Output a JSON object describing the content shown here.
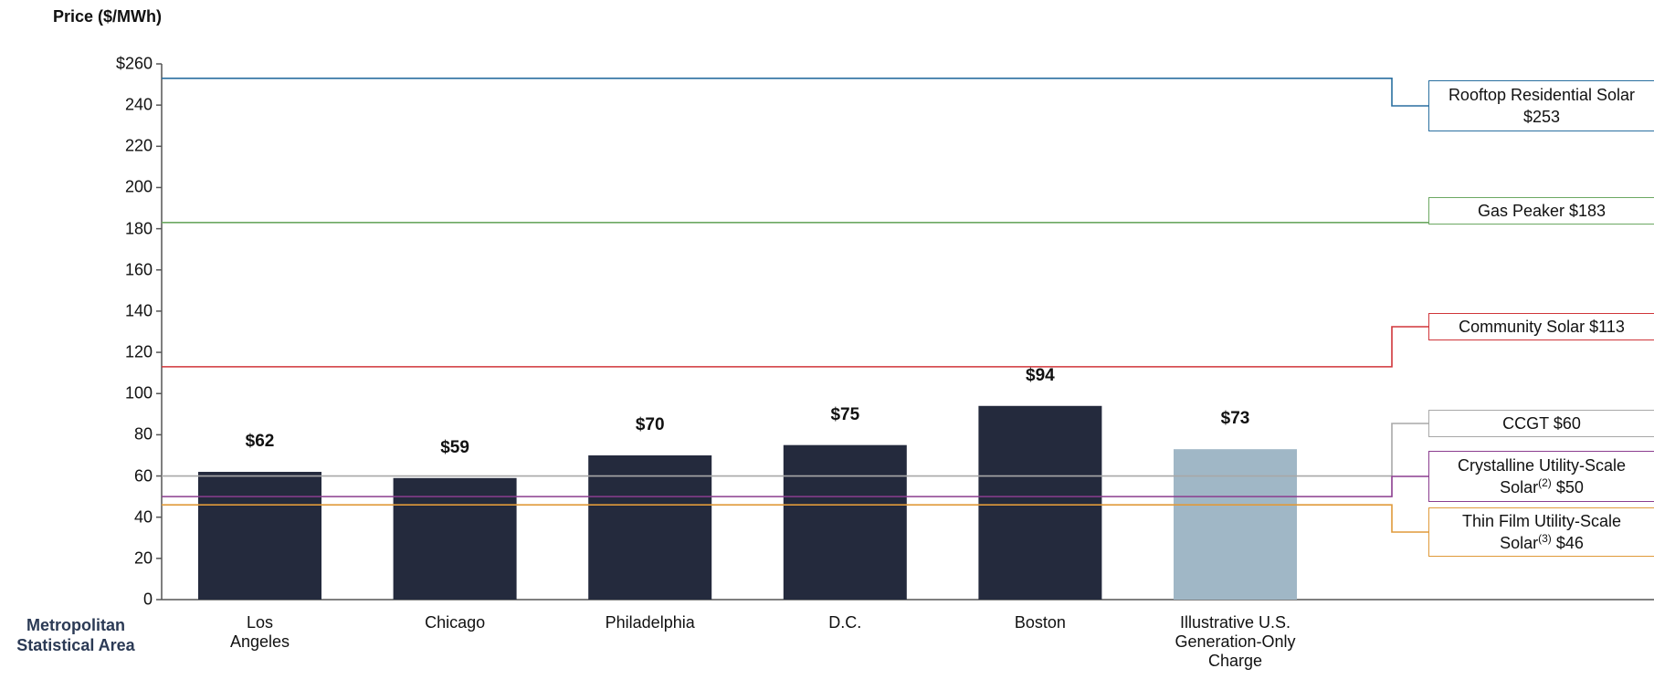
{
  "chart_data": {
    "type": "bar",
    "y_label": "Price ($/MWh)",
    "x_label": "Metropolitan\nStatistical Area",
    "categories": [
      "Los\nAngeles",
      "Chicago",
      "Philadelphia",
      "D.C.",
      "Boston",
      "Illustrative U.S.\nGeneration-Only\nCharge"
    ],
    "values": [
      62,
      59,
      70,
      75,
      94,
      73
    ],
    "value_labels": [
      "$62",
      "$59",
      "$70",
      "$75",
      "$94",
      "$73"
    ],
    "colors": [
      "#242a3d",
      "#242a3d",
      "#242a3d",
      "#242a3d",
      "#242a3d",
      "#a0b7c6"
    ],
    "ylim": [
      0,
      260
    ],
    "yticks": [
      0,
      20,
      40,
      60,
      80,
      100,
      120,
      140,
      160,
      180,
      200,
      220,
      240,
      {
        "value": 260,
        "label": "$260"
      }
    ],
    "reference_lines": [
      {
        "label": "Rooftop Residential Solar",
        "value": 253,
        "value_label": "$253",
        "color": "#2a6fa0"
      },
      {
        "label": "Gas Peaker",
        "value": 183,
        "value_label": "$183",
        "color": "#6ca862"
      },
      {
        "label": "Community Solar",
        "value": 113,
        "value_label": "$113",
        "color": "#d0353a"
      },
      {
        "label": "CCGT",
        "value": 60,
        "value_label": "$60",
        "color": "#a8a8a8"
      },
      {
        "label": "Crystalline Utility-Scale Solar",
        "note": "(2)",
        "value": 50,
        "value_label": "$50",
        "color": "#8b3d8f"
      },
      {
        "label": "Thin Film Utility-Scale Solar",
        "note": "(3)",
        "value": 46,
        "value_label": "$46",
        "color": "#e09a3a"
      }
    ]
  }
}
